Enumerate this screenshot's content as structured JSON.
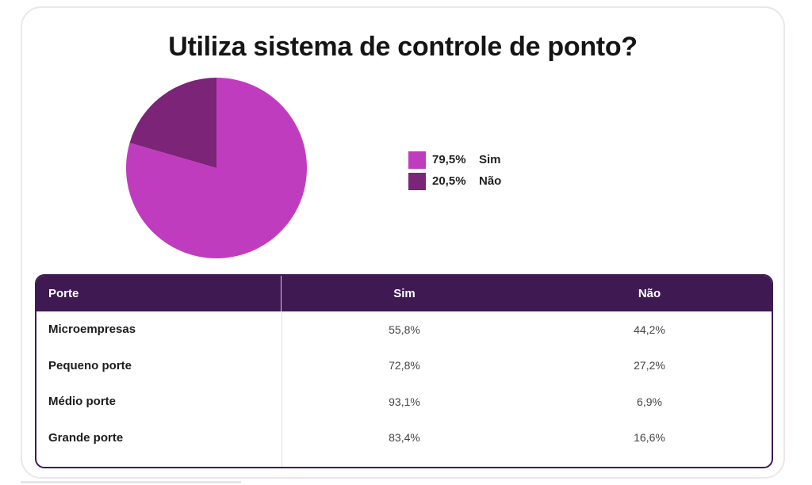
{
  "chart_data": {
    "type": "pie",
    "title": "Utiliza sistema de controle de ponto?",
    "slices": [
      {
        "label": "Sim",
        "pct_label": "79,5%",
        "value": 79.5,
        "color": "#c03cbe"
      },
      {
        "label": "Não",
        "pct_label": "20,5%",
        "value": 20.5,
        "color": "#7b2478"
      }
    ],
    "legend_position": "right"
  },
  "table": {
    "headers": [
      "Porte",
      "Sim",
      "Não"
    ],
    "rows": [
      [
        "Microempresas",
        "55,8%",
        "44,2%"
      ],
      [
        "Pequeno porte",
        "72,8%",
        "27,2%"
      ],
      [
        "Médio porte",
        "93,1%",
        "6,9%"
      ],
      [
        "Grande porte",
        "83,4%",
        "16,6%"
      ]
    ],
    "header_color": "#3f1a52"
  }
}
